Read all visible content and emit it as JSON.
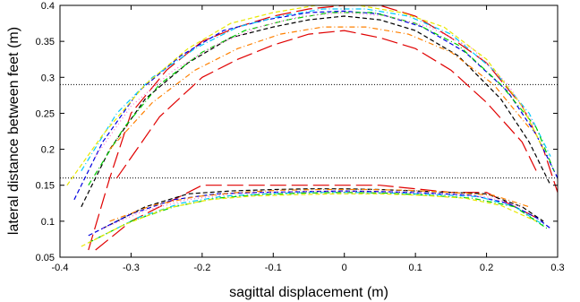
{
  "chart_data": {
    "type": "line",
    "title": "",
    "xlabel": "sagittal displacement (m)",
    "ylabel": "lateral distance between feet (m)",
    "xlim": [
      -0.4,
      0.3
    ],
    "ylim": [
      0.05,
      0.4
    ],
    "xticks": [
      "-0.4",
      "-0.3",
      "-0.2",
      "-0.1",
      "0",
      "0.1",
      "0.2",
      "0.3"
    ],
    "yticks": [
      "0.05",
      "0.1",
      "0.15",
      "0.2",
      "0.25",
      "0.3",
      "0.35",
      "0.4"
    ],
    "grid": false,
    "legend": "none",
    "reference_lines": [
      {
        "y": 0.16,
        "style": "dotted",
        "color": "#000000"
      },
      {
        "y": 0.29,
        "style": "dotted",
        "color": "#000000"
      }
    ],
    "series": [
      {
        "color": "#e00000",
        "dash": "long",
        "x": [
          -0.36,
          -0.33,
          -0.3,
          -0.25,
          -0.2,
          -0.15,
          -0.1,
          -0.05,
          0,
          0.05,
          0.1,
          0.15,
          0.2,
          0.25,
          0.28,
          0.3
        ],
        "y": [
          0.06,
          0.16,
          0.25,
          0.31,
          0.35,
          0.37,
          0.385,
          0.395,
          0.4,
          0.4,
          0.385,
          0.355,
          0.32,
          0.26,
          0.2,
          0.14
        ]
      },
      {
        "color": "#e00000",
        "dash": "long",
        "x": [
          -0.35,
          -0.3,
          -0.25,
          -0.2,
          -0.15,
          -0.1,
          -0.05,
          0,
          0.05,
          0.1,
          0.15,
          0.2,
          0.25,
          0.28
        ],
        "y": [
          0.06,
          0.1,
          0.125,
          0.15,
          0.15,
          0.15,
          0.15,
          0.15,
          0.15,
          0.145,
          0.14,
          0.14,
          0.115,
          0.1
        ]
      },
      {
        "color": "#e00000",
        "dash": "long",
        "x": [
          -0.32,
          -0.26,
          -0.2,
          -0.15,
          -0.1,
          -0.05,
          0,
          0.05,
          0.1,
          0.15,
          0.2,
          0.25,
          0.27
        ],
        "y": [
          0.16,
          0.245,
          0.3,
          0.325,
          0.345,
          0.36,
          0.365,
          0.355,
          0.34,
          0.31,
          0.265,
          0.21,
          0.17
        ]
      },
      {
        "color": "#000000",
        "dash": "dash",
        "x": [
          -0.37,
          -0.33,
          -0.28,
          -0.22,
          -0.16,
          -0.1,
          -0.05,
          0,
          0.05,
          0.1,
          0.16,
          0.22,
          0.26,
          0.29
        ],
        "y": [
          0.12,
          0.2,
          0.27,
          0.32,
          0.355,
          0.37,
          0.38,
          0.385,
          0.38,
          0.365,
          0.33,
          0.27,
          0.21,
          0.15
        ]
      },
      {
        "color": "#000000",
        "dash": "dash",
        "x": [
          -0.34,
          -0.28,
          -0.22,
          -0.16,
          -0.1,
          -0.05,
          0,
          0.05,
          0.1,
          0.15,
          0.2,
          0.25,
          0.28
        ],
        "y": [
          0.09,
          0.12,
          0.138,
          0.142,
          0.144,
          0.145,
          0.145,
          0.144,
          0.142,
          0.14,
          0.138,
          0.12,
          0.1
        ]
      },
      {
        "color": "#0000e0",
        "dash": "dash",
        "x": [
          -0.38,
          -0.34,
          -0.29,
          -0.23,
          -0.17,
          -0.11,
          -0.05,
          0,
          0.05,
          0.11,
          0.17,
          0.23,
          0.27,
          0.3
        ],
        "y": [
          0.13,
          0.21,
          0.28,
          0.33,
          0.365,
          0.38,
          0.39,
          0.392,
          0.388,
          0.37,
          0.335,
          0.28,
          0.22,
          0.16
        ]
      },
      {
        "color": "#0000e0",
        "dash": "dash",
        "x": [
          -0.36,
          -0.3,
          -0.24,
          -0.18,
          -0.12,
          -0.06,
          0,
          0.06,
          0.12,
          0.18,
          0.23,
          0.27,
          0.29
        ],
        "y": [
          0.08,
          0.11,
          0.13,
          0.138,
          0.14,
          0.141,
          0.142,
          0.141,
          0.139,
          0.136,
          0.125,
          0.105,
          0.09
        ]
      },
      {
        "color": "#00c8ff",
        "dash": "dashdot",
        "x": [
          -0.37,
          -0.32,
          -0.27,
          -0.21,
          -0.15,
          -0.09,
          -0.03,
          0.03,
          0.09,
          0.15,
          0.21,
          0.26,
          0.29
        ],
        "y": [
          0.17,
          0.25,
          0.3,
          0.34,
          0.37,
          0.385,
          0.395,
          0.395,
          0.385,
          0.36,
          0.31,
          0.25,
          0.19
        ]
      },
      {
        "color": "#00c8ff",
        "dash": "dashdot",
        "x": [
          -0.35,
          -0.29,
          -0.23,
          -0.17,
          -0.11,
          -0.05,
          0.01,
          0.07,
          0.13,
          0.19,
          0.24,
          0.28
        ],
        "y": [
          0.075,
          0.105,
          0.125,
          0.135,
          0.138,
          0.14,
          0.14,
          0.139,
          0.137,
          0.134,
          0.12,
          0.095
        ]
      },
      {
        "color": "#00cc00",
        "dash": "dashdot",
        "x": [
          -0.36,
          -0.31,
          -0.26,
          -0.2,
          -0.14,
          -0.08,
          -0.02,
          0.04,
          0.1,
          0.16,
          0.22,
          0.27,
          0.295
        ],
        "y": [
          0.15,
          0.23,
          0.29,
          0.335,
          0.365,
          0.38,
          0.39,
          0.39,
          0.375,
          0.345,
          0.29,
          0.23,
          0.17
        ]
      },
      {
        "color": "#00cc00",
        "dash": "dashdot",
        "x": [
          -0.36,
          -0.3,
          -0.24,
          -0.18,
          -0.12,
          -0.06,
          0,
          0.06,
          0.12,
          0.18,
          0.24,
          0.285
        ],
        "y": [
          0.07,
          0.1,
          0.12,
          0.132,
          0.137,
          0.139,
          0.14,
          0.139,
          0.136,
          0.132,
          0.12,
          0.09
        ]
      },
      {
        "color": "#e8e800",
        "dash": "dash",
        "x": [
          -0.39,
          -0.34,
          -0.28,
          -0.22,
          -0.16,
          -0.1,
          -0.04,
          0.02,
          0.08,
          0.14,
          0.2,
          0.25,
          0.28
        ],
        "y": [
          0.15,
          0.22,
          0.29,
          0.34,
          0.375,
          0.39,
          0.4,
          0.4,
          0.39,
          0.37,
          0.325,
          0.26,
          0.2
        ]
      },
      {
        "color": "#e8e800",
        "dash": "dash",
        "x": [
          -0.37,
          -0.31,
          -0.25,
          -0.19,
          -0.13,
          -0.07,
          -0.01,
          0.05,
          0.11,
          0.17,
          0.22,
          0.27
        ],
        "y": [
          0.065,
          0.095,
          0.118,
          0.13,
          0.135,
          0.137,
          0.138,
          0.138,
          0.136,
          0.132,
          0.122,
          0.1
        ]
      },
      {
        "color": "#ff66cc",
        "dash": "dot",
        "x": [
          -0.35,
          -0.3,
          -0.24,
          -0.18,
          -0.12,
          -0.06,
          0,
          0.06,
          0.12,
          0.18,
          0.23,
          0.27
        ],
        "y": [
          0.19,
          0.26,
          0.31,
          0.345,
          0.37,
          0.385,
          0.39,
          0.385,
          0.37,
          0.34,
          0.29,
          0.23
        ]
      },
      {
        "color": "#ff66cc",
        "dash": "dot",
        "x": [
          -0.34,
          -0.28,
          -0.22,
          -0.16,
          -0.1,
          -0.04,
          0.02,
          0.08,
          0.14,
          0.2,
          0.25
        ],
        "y": [
          0.09,
          0.115,
          0.13,
          0.138,
          0.14,
          0.141,
          0.141,
          0.14,
          0.138,
          0.134,
          0.12
        ]
      },
      {
        "color": "#ff8000",
        "dash": "dashdot",
        "x": [
          -0.33,
          -0.27,
          -0.21,
          -0.15,
          -0.09,
          -0.03,
          0.03,
          0.09,
          0.15,
          0.21,
          0.26
        ],
        "y": [
          0.2,
          0.265,
          0.31,
          0.34,
          0.36,
          0.37,
          0.37,
          0.36,
          0.335,
          0.29,
          0.23
        ]
      },
      {
        "color": "#ff8000",
        "dash": "dashdot",
        "x": [
          -0.33,
          -0.27,
          -0.21,
          -0.15,
          -0.09,
          -0.03,
          0.03,
          0.09,
          0.15,
          0.21,
          0.26
        ],
        "y": [
          0.1,
          0.122,
          0.134,
          0.14,
          0.143,
          0.144,
          0.144,
          0.143,
          0.14,
          0.136,
          0.12
        ]
      }
    ]
  }
}
